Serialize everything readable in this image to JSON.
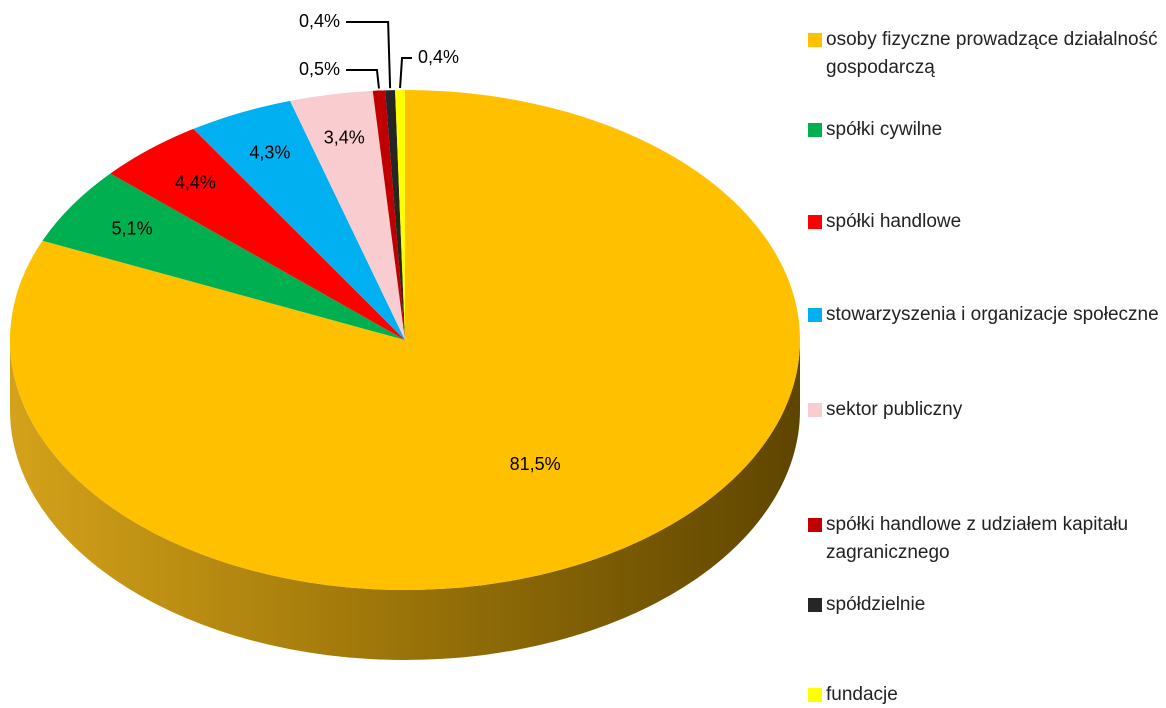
{
  "chart_data": {
    "type": "pie",
    "categories": [
      "osoby fizyczne prowadzące działalność gospodarczą",
      "spółki cywilne",
      "spółki handlowe",
      "stowarzyszenia i organizacje społeczne",
      "sektor publiczny",
      "spółki handlowe z udziałem kapitału zagranicznego",
      "spółdzielnie",
      "fundacje"
    ],
    "values": [
      81.5,
      5.1,
      4.4,
      4.3,
      3.4,
      0.5,
      0.4,
      0.4
    ],
    "value_labels": [
      "81,5%",
      "5,1%",
      "4,4%",
      "4,3%",
      "3,4%",
      "0,5%",
      "0,4%",
      "0,4%"
    ],
    "colors": [
      "#FFC000",
      "#00B050",
      "#FF0000",
      "#00B0F0",
      "#F9CDD0",
      "#C00000",
      "#262626",
      "#FFFF00"
    ],
    "legend": "right"
  }
}
